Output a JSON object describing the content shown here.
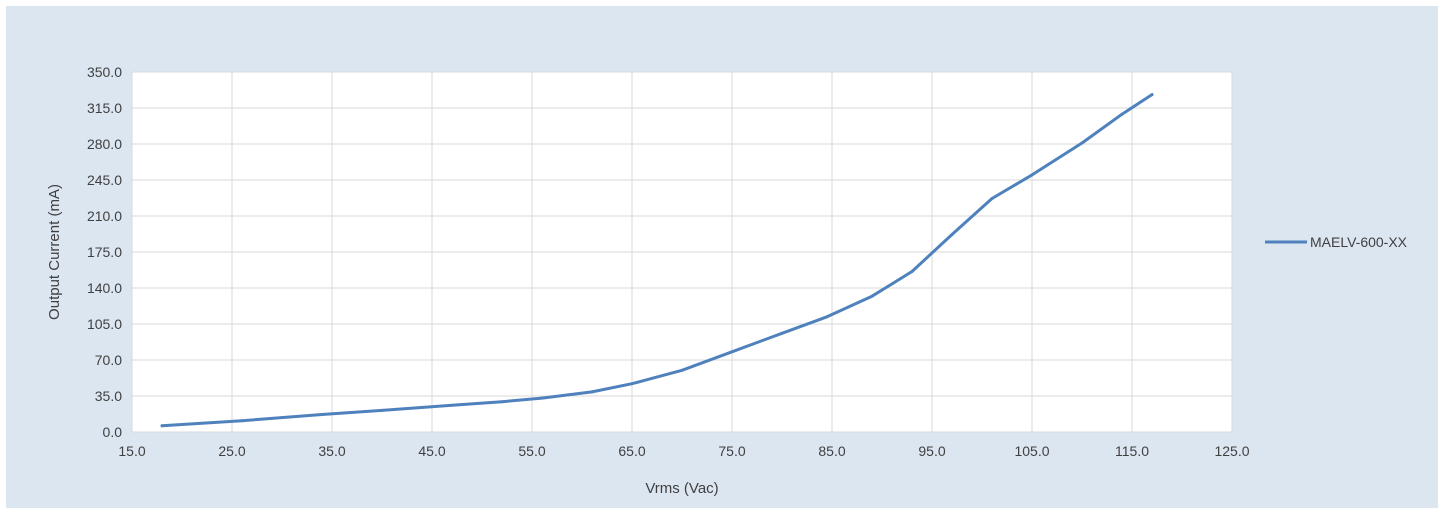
{
  "chart_data": {
    "type": "line",
    "xlabel": "Vrms (Vac)",
    "ylabel": "Output Current (mA)",
    "xlim": [
      15.0,
      125.0
    ],
    "ylim": [
      0.0,
      350.0
    ],
    "x_ticks": [
      "15.0",
      "25.0",
      "35.0",
      "45.0",
      "55.0",
      "65.0",
      "75.0",
      "85.0",
      "95.0",
      "105.0",
      "115.0",
      "125.0"
    ],
    "y_ticks": [
      "0.0",
      "35.0",
      "70.0",
      "105.0",
      "140.0",
      "175.0",
      "210.0",
      "245.0",
      "280.0",
      "315.0",
      "350.0"
    ],
    "grid": true,
    "legend_position": "right",
    "series": [
      {
        "name": "MAELV-600-XX",
        "color": "#4f81bd",
        "x": [
          18.0,
          26.0,
          34.0,
          40.0,
          47.0,
          52.0,
          56.0,
          61.0,
          65.0,
          70.0,
          75.0,
          80.0,
          84.5,
          89.0,
          93.0,
          97.0,
          101.0,
          105.0,
          110.0,
          114.0,
          117.0
        ],
        "y": [
          6.0,
          11.0,
          17.0,
          21.0,
          26.0,
          29.5,
          33.0,
          39.0,
          47.0,
          60.0,
          78.0,
          96.0,
          112.0,
          132.0,
          156.0,
          192.0,
          227.0,
          250.0,
          281.0,
          309.0,
          328.0
        ]
      }
    ]
  }
}
